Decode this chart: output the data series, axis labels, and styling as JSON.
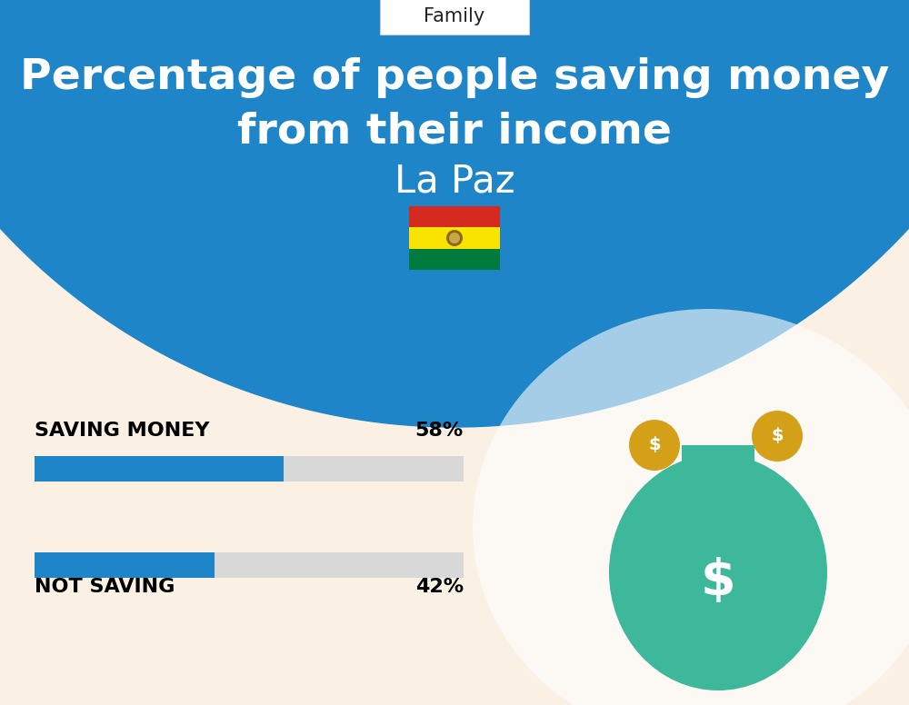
{
  "title_line1": "Percentage of people saving money",
  "title_line2": "from their income",
  "subtitle": "La Paz",
  "category_label": "Family",
  "bg_top_color": "#1E85C8",
  "bg_bottom_color": "#FAF0E4",
  "bar_color": "#1E85C8",
  "bar_bg_color": "#D8D8D8",
  "saving_label": "SAVING MONEY",
  "saving_value": 58,
  "saving_pct_label": "58%",
  "not_saving_label": "NOT SAVING",
  "not_saving_value": 42,
  "not_saving_pct_label": "42%",
  "label_fontsize": 16,
  "pct_fontsize": 16,
  "title_fontsize": 34,
  "subtitle_fontsize": 30,
  "tag_fontsize": 15,
  "fig_width": 10.0,
  "fig_height": 7.76
}
